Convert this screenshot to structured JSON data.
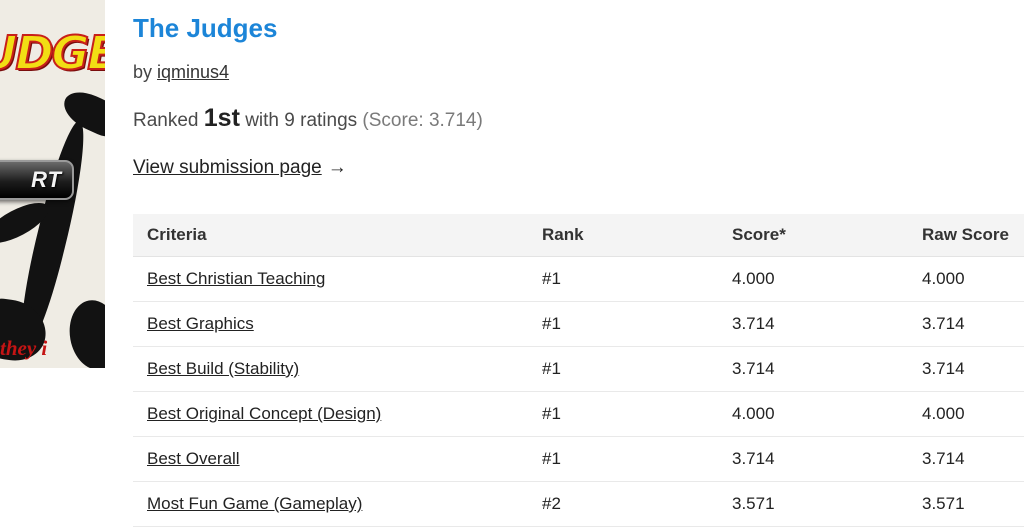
{
  "thumbnail": {
    "art_title_fragment": "UDGE",
    "button_fragment": "RT",
    "caption_fragment": "they i"
  },
  "header": {
    "title": "The Judges",
    "by_label": "by ",
    "author": "iqminus4",
    "ranked_prefix": "Ranked ",
    "rank": "1st",
    "ratings_text": " with 9 ratings ",
    "score_note": "(Score: 3.714)",
    "view_submission_label": "View submission page",
    "view_submission_arrow": "→"
  },
  "colors": {
    "title_blue": "#1c85d8",
    "header_bg": "#f4f4f4",
    "thumb_yellow": "#f2de14",
    "thumb_red": "#c41414"
  },
  "table": {
    "headers": [
      "Criteria",
      "Rank",
      "Score*",
      "Raw Score"
    ],
    "rows": [
      {
        "criteria": "Best Christian Teaching",
        "rank": "#1",
        "score": "4.000",
        "raw": "4.000"
      },
      {
        "criteria": "Best Graphics",
        "rank": "#1",
        "score": "3.714",
        "raw": "3.714"
      },
      {
        "criteria": "Best Build (Stability)",
        "rank": "#1",
        "score": "3.714",
        "raw": "3.714"
      },
      {
        "criteria": "Best Original Concept (Design)",
        "rank": "#1",
        "score": "4.000",
        "raw": "4.000"
      },
      {
        "criteria": "Best Overall",
        "rank": "#1",
        "score": "3.714",
        "raw": "3.714"
      },
      {
        "criteria": "Most Fun Game (Gameplay)",
        "rank": "#2",
        "score": "3.571",
        "raw": "3.571"
      }
    ]
  }
}
